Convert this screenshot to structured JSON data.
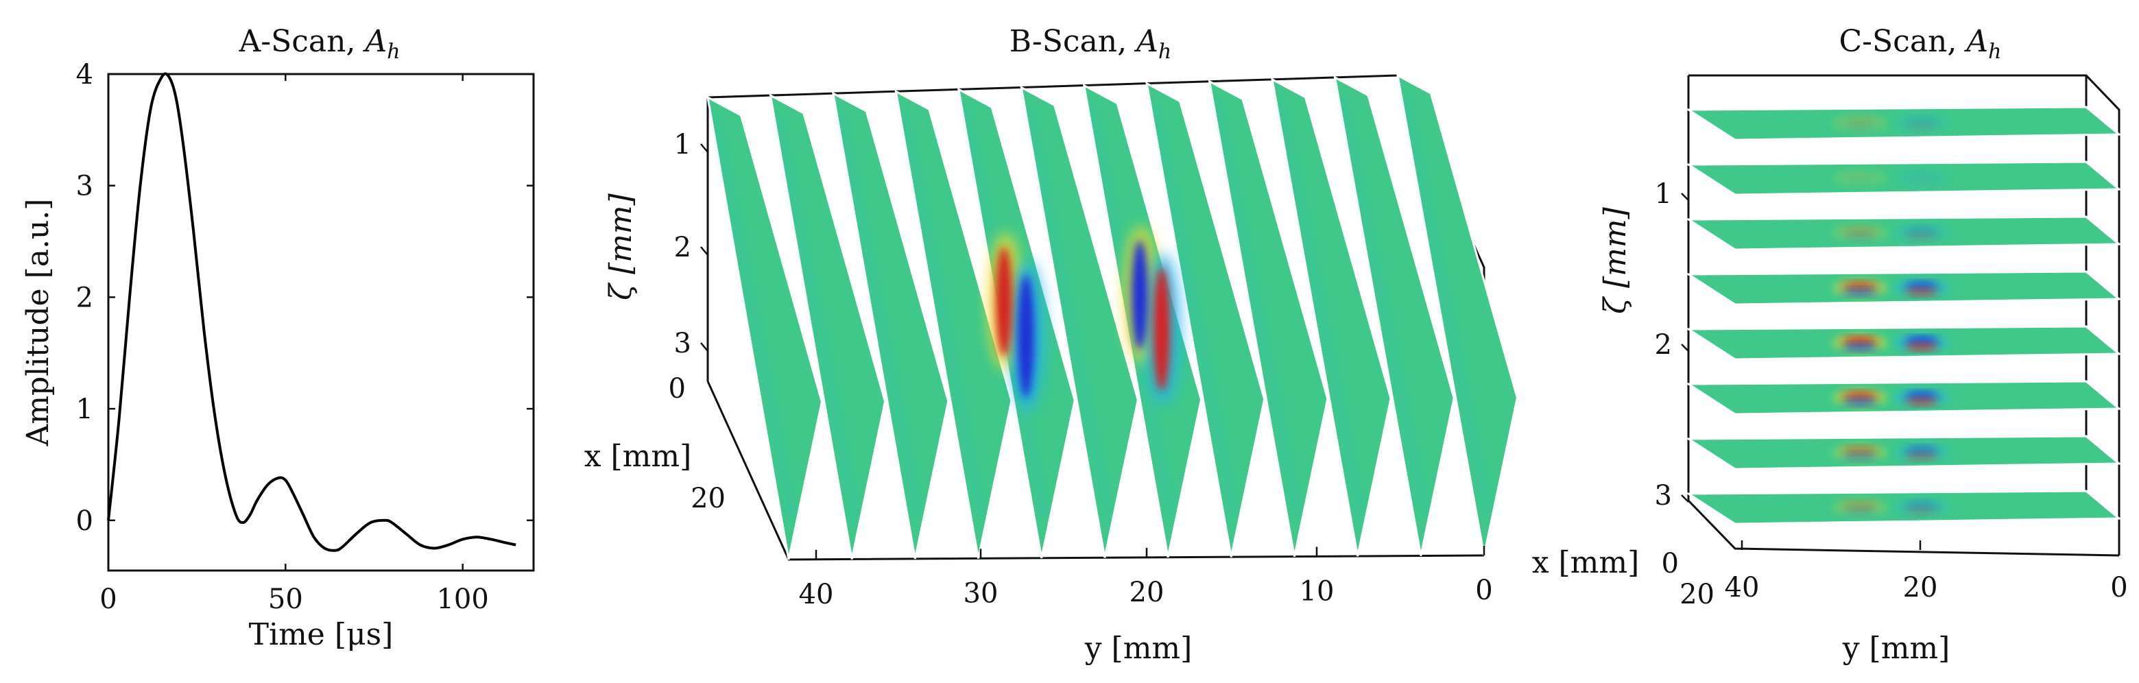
{
  "colors": {
    "background": "#ffffff",
    "axis": "#111111",
    "field_base": "#3fc88a",
    "positive": "#d42020",
    "negative": "#1a2fd6",
    "pos_halo": "#f0e030",
    "neg_halo": "#27b4ee"
  },
  "chart_data": [
    {
      "type": "line",
      "title": "A-Scan, ",
      "title_symbol": "A",
      "title_subscript": "h",
      "xlabel": "Time [μs]",
      "ylabel": "Amplitude [a.u.]",
      "xlim": [
        0,
        120
      ],
      "ylim": [
        -0.45,
        4
      ],
      "xticks": [
        "0",
        "50",
        "100"
      ],
      "xtick_values": [
        0,
        50,
        100
      ],
      "yticks": [
        "0",
        "1",
        "2",
        "3",
        "4"
      ],
      "ytick_values": [
        0,
        1,
        2,
        3,
        4
      ],
      "grid": false,
      "series": [
        {
          "x": [
            0,
            3,
            6,
            9,
            12,
            15,
            17,
            19,
            21,
            24,
            27,
            30,
            33,
            36,
            38,
            40,
            42,
            45,
            48,
            50,
            52,
            55,
            58,
            61,
            64,
            66,
            70,
            74,
            78,
            80,
            84,
            88,
            92,
            96,
            100,
            104,
            108,
            112,
            115
          ],
          "y": [
            0,
            0.9,
            2.0,
            3.0,
            3.7,
            3.97,
            3.98,
            3.8,
            3.4,
            2.6,
            1.7,
            0.95,
            0.4,
            0.05,
            -0.02,
            0.05,
            0.18,
            0.32,
            0.38,
            0.36,
            0.25,
            0.05,
            -0.15,
            -0.25,
            -0.27,
            -0.24,
            -0.12,
            -0.02,
            0.0,
            -0.02,
            -0.12,
            -0.22,
            -0.25,
            -0.22,
            -0.17,
            -0.15,
            -0.17,
            -0.2,
            -0.22
          ]
        }
      ]
    },
    {
      "type": "heatmap",
      "title": "B-Scan, ",
      "title_symbol": "A",
      "title_subscript": "h",
      "xlabel": "y [mm]",
      "ylabel": "x [mm]",
      "zlabel": "ζ [mm]",
      "xticks": [
        "40",
        "30",
        "20",
        "10",
        "0"
      ],
      "xtick_values": [
        40,
        30,
        20,
        10,
        0
      ],
      "yticks": [
        "0",
        "20"
      ],
      "ytick_values": [
        0,
        20
      ],
      "zticks": [
        "1",
        "2",
        "3"
      ],
      "ztick_values": [
        1,
        2,
        3
      ],
      "slice_count": 12
    },
    {
      "type": "heatmap",
      "title": "C-Scan, ",
      "title_symbol": "A",
      "title_subscript": "h",
      "xlabel": "y [mm]",
      "ylabel": "x [mm]",
      "zlabel": "ζ [mm]",
      "xticks": [
        "40",
        "20",
        "0"
      ],
      "xtick_values": [
        40,
        20,
        0
      ],
      "yticks": [
        "0",
        "20"
      ],
      "ytick_values": [
        0,
        20
      ],
      "zticks": [
        "1",
        "2",
        "3"
      ],
      "ztick_values": [
        1,
        2,
        3
      ],
      "slice_count": 8,
      "slice_intensity": [
        0.15,
        0.05,
        0.25,
        0.85,
        1.0,
        0.9,
        0.55,
        0.3
      ]
    }
  ]
}
